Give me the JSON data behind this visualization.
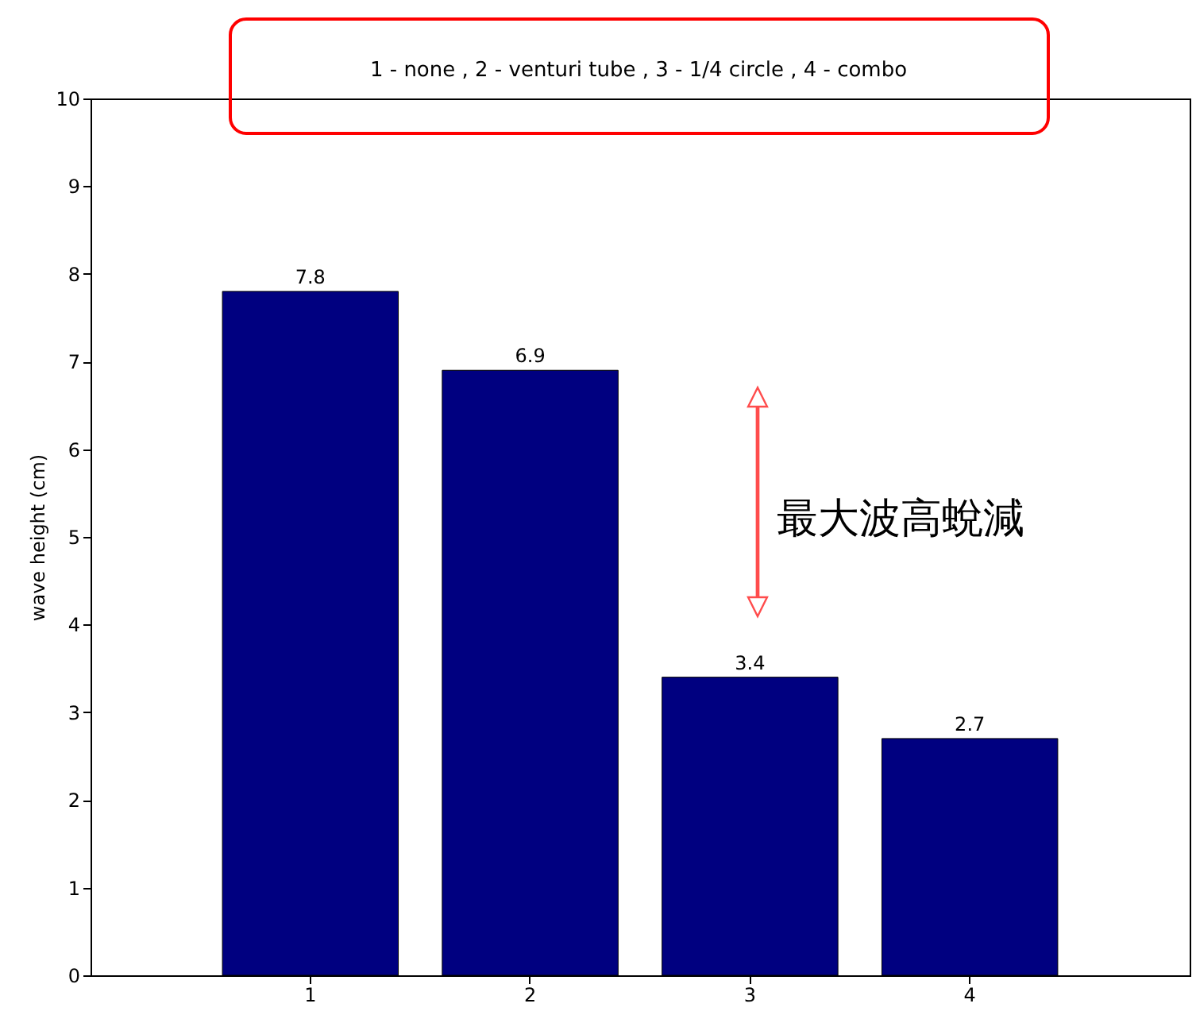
{
  "chart_data": {
    "type": "bar",
    "categories": [
      "1",
      "2",
      "3",
      "4"
    ],
    "values": [
      7.8,
      6.9,
      3.4,
      2.7
    ],
    "color": "#000080",
    "ylabel": "wave height (cm)",
    "ylim": [
      0,
      10
    ],
    "yticks": [
      0,
      1,
      2,
      3,
      4,
      5,
      6,
      7,
      8,
      9,
      10
    ],
    "grid": false,
    "data_labels": true,
    "annotations": [
      "1 - none , 2 - venturi tube , 3 - 1/4 circle , 4 - combo",
      "最大波高蛻減"
    ]
  }
}
